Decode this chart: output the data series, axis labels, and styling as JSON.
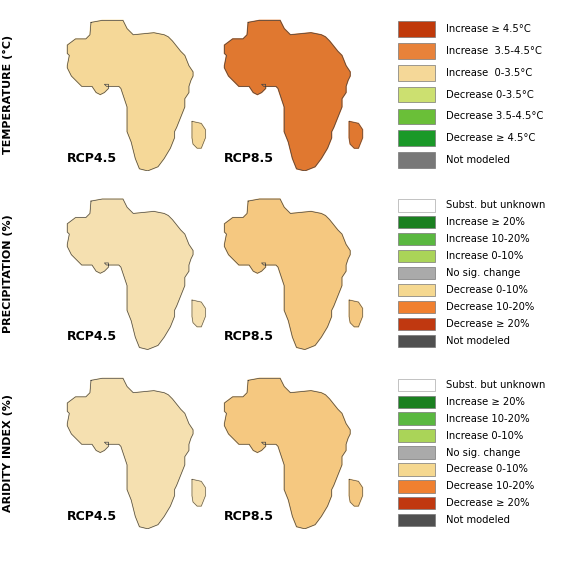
{
  "row_labels": [
    "TEMPERATURE (°C)",
    "PRECIPITATION (%)",
    "ARIDITY INDEX (%)"
  ],
  "col_labels": [
    "RCP4.5",
    "RCP8.5"
  ],
  "temp_legend_labels": [
    "Increase ≥ 4.5°C",
    "Increase  3.5-4.5°C",
    "Increase  0-3.5°C",
    "Decrease 0-3.5°C",
    "Decrease 3.5-4.5°C",
    "Decrease ≥ 4.5°C",
    "Not modeled"
  ],
  "temp_legend_colors": [
    "#c0390a",
    "#e8823a",
    "#f5d898",
    "#cce070",
    "#6abf38",
    "#1a9928",
    "#787878"
  ],
  "precip_legend_labels": [
    "Subst. but unknown",
    "Increase ≥ 20%",
    "Increase 10-20%",
    "Increase 0-10%",
    "No sig. change",
    "Decrease 0-10%",
    "Decrease 10-20%",
    "Decrease ≥ 20%",
    "Not modeled"
  ],
  "precip_legend_colors": [
    "#ffffff",
    "#1a8020",
    "#5ab840",
    "#aad458",
    "#aaaaaa",
    "#f5d890",
    "#f08030",
    "#c03810",
    "#505050"
  ],
  "aridity_legend_labels": [
    "Subst. but unknown",
    "Increase ≥ 20%",
    "Increase 10-20%",
    "Increase 0-10%",
    "No sig. change",
    "Decrease 0-10%",
    "Decrease 10-20%",
    "Decrease ≥ 20%",
    "Not modeled"
  ],
  "aridity_legend_colors": [
    "#ffffff",
    "#1a8020",
    "#5ab840",
    "#aad458",
    "#aaaaaa",
    "#f5d890",
    "#f08030",
    "#c03810",
    "#505050"
  ],
  "legend_bg": "#d8d8d8",
  "fig_bg": "white",
  "border_color": "#888888",
  "coast_color": "#444444",
  "rcp_label_fontsize": 9,
  "row_label_fontsize": 8,
  "legend_fontsize": 7.2,
  "africa_extent": [
    -20,
    52,
    -36,
    38
  ],
  "map_bg": "white"
}
